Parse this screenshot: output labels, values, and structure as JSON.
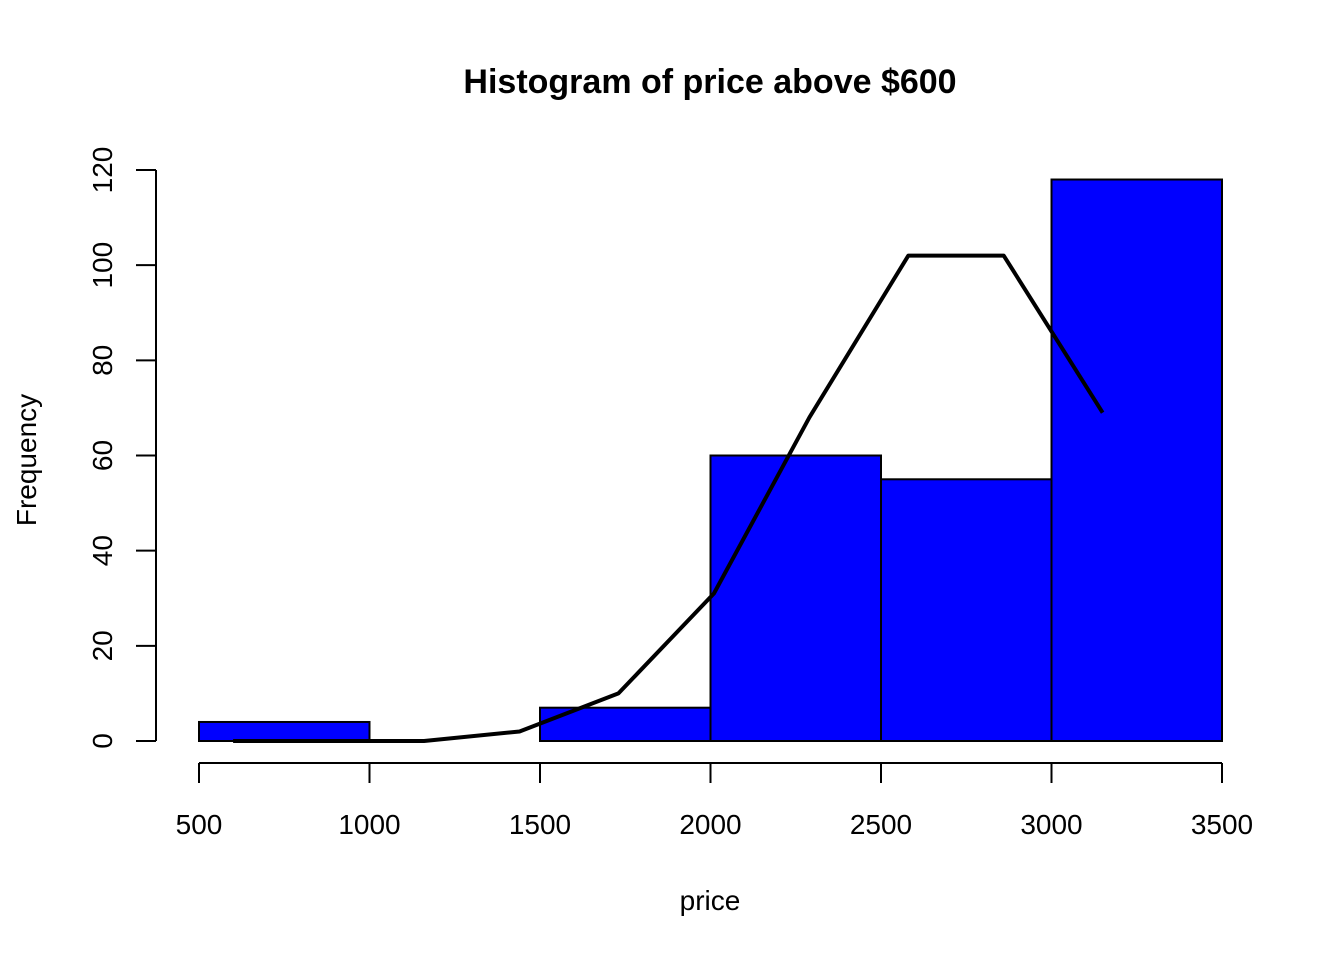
{
  "chart_data": {
    "type": "bar",
    "title": "Histogram of price above $600",
    "xlabel": "price",
    "ylabel": "Frequency",
    "bar_color": "#0000ff",
    "curve_color": "#000000",
    "bins": [
      {
        "from": 500,
        "to": 1000,
        "count": 4
      },
      {
        "from": 1000,
        "to": 1500,
        "count": 0
      },
      {
        "from": 1500,
        "to": 2000,
        "count": 7
      },
      {
        "from": 2000,
        "to": 2500,
        "count": 60
      },
      {
        "from": 2500,
        "to": 3000,
        "count": 55
      },
      {
        "from": 3000,
        "to": 3500,
        "count": 118
      }
    ],
    "curve": {
      "x": [
        600,
        880,
        1160,
        1440,
        1730,
        2010,
        2290,
        2580,
        2860,
        3150
      ],
      "y": [
        0,
        0,
        0,
        2,
        10,
        31,
        68,
        102,
        102,
        69
      ]
    },
    "xlim": [
      500,
      3500
    ],
    "ylim": [
      0,
      120
    ],
    "x_ticks": [
      500,
      1000,
      1500,
      2000,
      2500,
      3000,
      3500
    ],
    "y_ticks": [
      0,
      20,
      40,
      60,
      80,
      100,
      120
    ],
    "grid": false,
    "legend": "none"
  }
}
